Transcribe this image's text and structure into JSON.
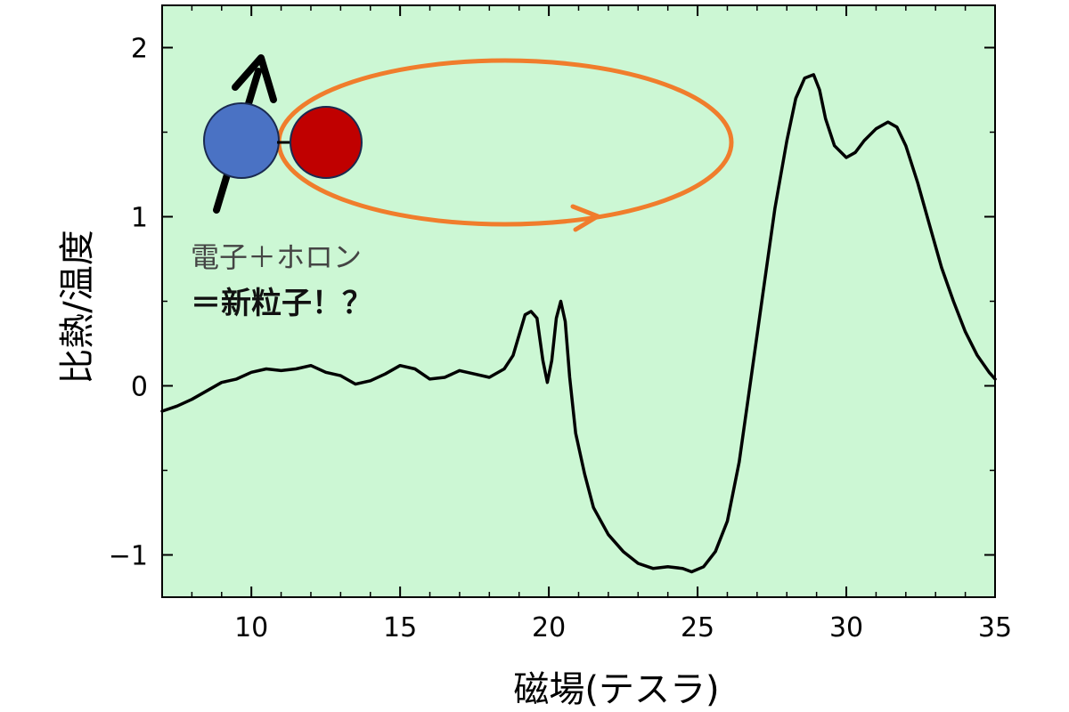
{
  "chart_data": {
    "type": "line",
    "xlabel": "磁場(テスラ)",
    "ylabel": "比熱/温度",
    "xlim": [
      7,
      35
    ],
    "ylim": [
      -1.25,
      2.25
    ],
    "x_ticks": [
      10,
      15,
      20,
      25,
      30,
      35
    ],
    "y_ticks": [
      -1,
      0,
      1,
      2
    ],
    "x_tick_labels": [
      "10",
      "15",
      "20",
      "25",
      "30",
      "35"
    ],
    "y_tick_labels": [
      "−1",
      "0",
      "1",
      "2"
    ],
    "grid": false,
    "legend": "none",
    "plot_background": "#ccf7d4",
    "series": [
      {
        "color": "#000000",
        "x": [
          7.0,
          7.5,
          8.0,
          8.5,
          9.0,
          9.5,
          10.0,
          10.5,
          11.0,
          11.5,
          12.0,
          12.5,
          13.0,
          13.5,
          14.0,
          14.5,
          15.0,
          15.5,
          16.0,
          16.5,
          17.0,
          17.5,
          18.0,
          18.5,
          18.8,
          19.0,
          19.2,
          19.4,
          19.6,
          19.8,
          19.95,
          20.1,
          20.25,
          20.4,
          20.55,
          20.7,
          20.9,
          21.2,
          21.5,
          22.0,
          22.5,
          23.0,
          23.5,
          24.0,
          24.5,
          24.8,
          25.2,
          25.6,
          26.0,
          26.4,
          26.8,
          27.2,
          27.6,
          28.0,
          28.3,
          28.6,
          28.9,
          29.1,
          29.3,
          29.6,
          30.0,
          30.3,
          30.6,
          31.0,
          31.4,
          31.7,
          32.0,
          32.4,
          32.8,
          33.2,
          33.6,
          34.0,
          34.4,
          34.8,
          35.0
        ],
        "y": [
          -0.15,
          -0.12,
          -0.08,
          -0.03,
          0.02,
          0.04,
          0.08,
          0.1,
          0.09,
          0.1,
          0.12,
          0.08,
          0.06,
          0.01,
          0.03,
          0.07,
          0.12,
          0.1,
          0.04,
          0.05,
          0.09,
          0.07,
          0.05,
          0.1,
          0.18,
          0.3,
          0.42,
          0.44,
          0.4,
          0.15,
          0.02,
          0.15,
          0.4,
          0.5,
          0.38,
          0.05,
          -0.28,
          -0.52,
          -0.72,
          -0.88,
          -0.98,
          -1.05,
          -1.08,
          -1.07,
          -1.08,
          -1.1,
          -1.07,
          -0.98,
          -0.8,
          -0.45,
          0.05,
          0.55,
          1.05,
          1.45,
          1.7,
          1.82,
          1.84,
          1.75,
          1.58,
          1.42,
          1.35,
          1.38,
          1.45,
          1.52,
          1.56,
          1.53,
          1.42,
          1.2,
          0.95,
          0.7,
          0.5,
          0.32,
          0.18,
          0.08,
          0.04
        ]
      }
    ],
    "annotation": {
      "line1": "電子＋ホロン",
      "line2": "＝新粒子！？",
      "electron_color": "#4a72c4",
      "holon_color": "#c00000",
      "orbit_color": "#f07d2c",
      "spin_arrow_color": "#000000"
    }
  }
}
